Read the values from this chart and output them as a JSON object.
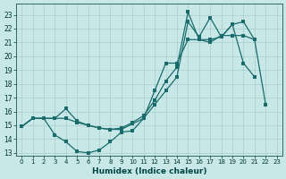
{
  "xlabel": "Humidex (Indice chaleur)",
  "bg_color": "#c8e8e8",
  "grid_color": "#a8cccc",
  "line_color": "#1a6b6b",
  "xlim": [
    -0.5,
    23.5
  ],
  "ylim": [
    12.8,
    23.8
  ],
  "yticks": [
    13,
    14,
    15,
    16,
    17,
    18,
    19,
    20,
    21,
    22,
    23
  ],
  "xticks": [
    0,
    1,
    2,
    3,
    4,
    5,
    6,
    7,
    8,
    9,
    10,
    11,
    12,
    13,
    14,
    15,
    16,
    17,
    18,
    19,
    20,
    21,
    22,
    23
  ],
  "line1_y": [
    14.9,
    15.5,
    15.5,
    15.5,
    16.2,
    15.3,
    15.0,
    14.8,
    14.7,
    14.8,
    15.2,
    15.7,
    16.8,
    18.2,
    19.2,
    23.2,
    21.2,
    21.0,
    21.5,
    21.5,
    21.5,
    21.2,
    16.5,
    null
  ],
  "line2_y": [
    14.9,
    15.5,
    15.5,
    14.3,
    13.8,
    13.1,
    13.0,
    13.2,
    13.8,
    14.5,
    14.6,
    15.5,
    17.5,
    19.5,
    19.5,
    21.2,
    21.2,
    21.2,
    21.4,
    22.3,
    19.5,
    18.5,
    null,
    null
  ],
  "line3_y": [
    14.9,
    15.5,
    15.5,
    15.5,
    15.5,
    15.2,
    15.0,
    14.8,
    14.7,
    14.7,
    15.1,
    15.5,
    16.5,
    17.5,
    18.5,
    22.5,
    21.4,
    22.8,
    21.4,
    22.3,
    22.5,
    21.2,
    null,
    null
  ]
}
